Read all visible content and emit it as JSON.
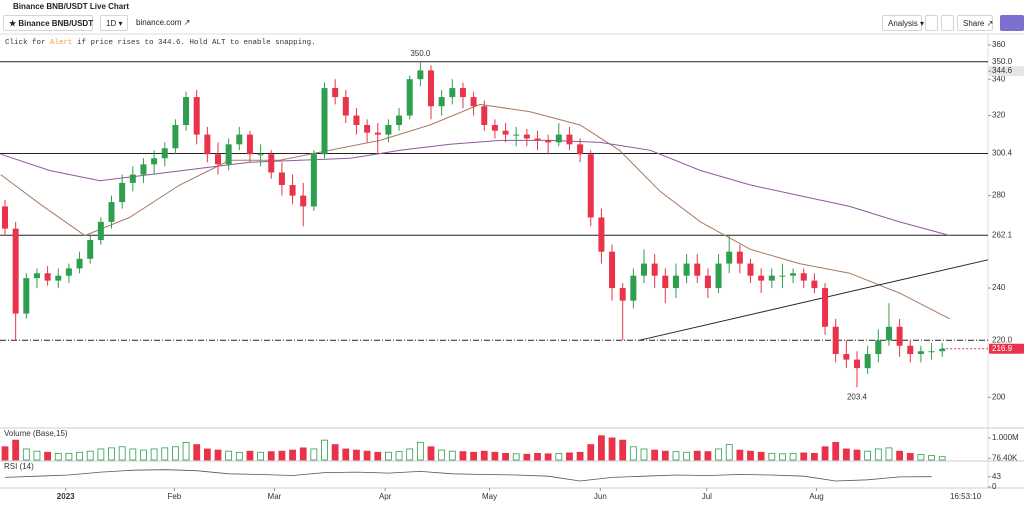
{
  "header": {
    "title": "Binance BNB/USDT Live Chart"
  },
  "toolbar": {
    "symbol": "Binance BNB/USDT",
    "interval": "1D",
    "source": "binance.com",
    "analysis": "Analysis",
    "share": "Share"
  },
  "hint": {
    "before": "Click for ",
    "link": "Alert",
    "after": " if price rises to 344.6. Hold ALT to enable snapping."
  },
  "time": "16:53:10",
  "chart_data": [
    {
      "type": "candlestick",
      "up_color": "#2e9e4f",
      "down_color": "#e8334a",
      "ohlc": [
        [
          275,
          278,
          262,
          265
        ],
        [
          265,
          268,
          220,
          230
        ],
        [
          230,
          246,
          228,
          244
        ],
        [
          244,
          248,
          240,
          246
        ],
        [
          246,
          249,
          241,
          243
        ],
        [
          243,
          248,
          240,
          245
        ],
        [
          245,
          250,
          242,
          248
        ],
        [
          248,
          255,
          246,
          252
        ],
        [
          252,
          262,
          250,
          260
        ],
        [
          260,
          270,
          258,
          268
        ],
        [
          268,
          280,
          265,
          277
        ],
        [
          277,
          290,
          274,
          286
        ],
        [
          286,
          294,
          282,
          290
        ],
        [
          290,
          298,
          286,
          295
        ],
        [
          295,
          302,
          290,
          298
        ],
        [
          298,
          306,
          294,
          303
        ],
        [
          303,
          318,
          300,
          315
        ],
        [
          315,
          333,
          312,
          330
        ],
        [
          330,
          334,
          305,
          310
        ],
        [
          310,
          314,
          296,
          300
        ],
        [
          300,
          306,
          290,
          295
        ],
        [
          295,
          308,
          292,
          305
        ],
        [
          305,
          314,
          302,
          310
        ],
        [
          310,
          312,
          296,
          300
        ],
        [
          300,
          305,
          294,
          300
        ],
        [
          300,
          302,
          288,
          291
        ],
        [
          291,
          296,
          280,
          285
        ],
        [
          285,
          290,
          276,
          280
        ],
        [
          280,
          286,
          266,
          275
        ],
        [
          275,
          302,
          273,
          300
        ],
        [
          300,
          338,
          298,
          335
        ],
        [
          335,
          340,
          326,
          330
        ],
        [
          330,
          334,
          316,
          320
        ],
        [
          320,
          324,
          310,
          315
        ],
        [
          315,
          318,
          306,
          311
        ],
        [
          311,
          316,
          300,
          310
        ],
        [
          310,
          318,
          306,
          315
        ],
        [
          315,
          324,
          312,
          320
        ],
        [
          320,
          342,
          318,
          340
        ],
        [
          340,
          350,
          336,
          345
        ],
        [
          345,
          348,
          318,
          325
        ],
        [
          325,
          334,
          320,
          330
        ],
        [
          330,
          340,
          326,
          335
        ],
        [
          335,
          338,
          324,
          330
        ],
        [
          330,
          333,
          320,
          325
        ],
        [
          325,
          328,
          312,
          315
        ],
        [
          315,
          318,
          308,
          312
        ],
        [
          312,
          316,
          306,
          310
        ],
        [
          310,
          314,
          304,
          310
        ],
        [
          310,
          313,
          304,
          308
        ],
        [
          308,
          312,
          302,
          307
        ],
        [
          307,
          310,
          300,
          306
        ],
        [
          306,
          316,
          304,
          310
        ],
        [
          310,
          314,
          302,
          305
        ],
        [
          305,
          308,
          296,
          300
        ],
        [
          300,
          302,
          266,
          270
        ],
        [
          270,
          274,
          250,
          255
        ],
        [
          255,
          258,
          235,
          240
        ],
        [
          240,
          242,
          220,
          235
        ],
        [
          235,
          248,
          232,
          245
        ],
        [
          245,
          256,
          242,
          250
        ],
        [
          250,
          254,
          240,
          245
        ],
        [
          245,
          248,
          234,
          240
        ],
        [
          240,
          250,
          236,
          245
        ],
        [
          245,
          254,
          242,
          250
        ],
        [
          250,
          254,
          242,
          245
        ],
        [
          245,
          248,
          236,
          240
        ],
        [
          240,
          254,
          238,
          250
        ],
        [
          250,
          262,
          246,
          255
        ],
        [
          255,
          258,
          246,
          250
        ],
        [
          250,
          252,
          242,
          245
        ],
        [
          245,
          248,
          238,
          243
        ],
        [
          243,
          248,
          240,
          245
        ],
        [
          245,
          250,
          240,
          245
        ],
        [
          245,
          248,
          242,
          246
        ],
        [
          246,
          248,
          240,
          243
        ],
        [
          243,
          246,
          238,
          240
        ],
        [
          240,
          242,
          222,
          225
        ],
        [
          225,
          228,
          212,
          215
        ],
        [
          215,
          220,
          210,
          213
        ],
        [
          213,
          216,
          203.4,
          210
        ],
        [
          210,
          218,
          208,
          215
        ],
        [
          215,
          224,
          212,
          220
        ],
        [
          220,
          234,
          218,
          225
        ],
        [
          225,
          228,
          214,
          218
        ],
        [
          218,
          220,
          212,
          215
        ],
        [
          215,
          218,
          212,
          216
        ],
        [
          216,
          219,
          213,
          216
        ],
        [
          216,
          219,
          214,
          216.9
        ]
      ],
      "ylim": [
        191,
        366
      ],
      "log": true,
      "yticks": [
        200,
        240,
        280,
        320,
        340,
        360
      ],
      "xlim": [
        -0.47,
        92.3
      ],
      "xticks": [
        {
          "value": 5.7,
          "label": "2023"
        },
        {
          "value": 15.9,
          "label": "Feb"
        },
        {
          "value": 25.3,
          "label": "Mar"
        },
        {
          "value": 35.7,
          "label": "Apr"
        },
        {
          "value": 45.5,
          "label": "May"
        },
        {
          "value": 55.9,
          "label": "Jun"
        },
        {
          "value": 65.9,
          "label": "Jul"
        },
        {
          "value": 76.2,
          "label": "Aug"
        }
      ],
      "lines": [
        {
          "color": "#a87a62",
          "x": [
            -0.4,
            3.3,
            7.5,
            11.7,
            16.4,
            21.1,
            25.8,
            30.5,
            35.2,
            39.9,
            44.6,
            49.3,
            54,
            57.7,
            61.5,
            65.3,
            70,
            74.6,
            79.3,
            84,
            88.7
          ],
          "values": [
            290,
            276,
            262,
            270,
            285,
            297,
            297,
            302,
            307,
            315,
            326,
            322,
            315,
            302,
            282,
            268,
            256,
            250,
            246,
            238,
            228
          ]
        },
        {
          "color": "#8e5a9c",
          "x": [
            -0.4,
            4.2,
            8.9,
            13.6,
            18.3,
            23,
            27.7,
            32.4,
            37.1,
            41.8,
            46.5,
            51.2,
            55.9,
            60.6,
            65.3,
            70,
            74.6,
            79.3,
            84,
            88.7
          ],
          "values": [
            300,
            292,
            287,
            290,
            293,
            296,
            297,
            298,
            302,
            305,
            307,
            307,
            306,
            302,
            292,
            285,
            280,
            275,
            268,
            262
          ]
        },
        {
          "color": "#222222",
          "x": [
            59.6,
            92.3
          ],
          "values": [
            220,
            251.6
          ]
        }
      ],
      "levels": [
        {
          "value": 350,
          "label": "350.0"
        },
        300.4,
        262.1
      ],
      "dashed_level": {
        "value": 220,
        "label": "220.0"
      },
      "alert": 344.6,
      "last": 216.9,
      "last_color": "#e8334a",
      "high_label": {
        "value": 350,
        "label": "350.0"
      },
      "low_label": 203.4
    },
    {
      "type": "bar",
      "title": "Volume (Base,15)",
      "values": [
        600000,
        900000,
        500000,
        400000,
        350000,
        300000,
        300000,
        350000,
        400000,
        500000,
        550000,
        600000,
        500000,
        450000,
        500000,
        550000,
        600000,
        800000,
        700000,
        500000,
        450000,
        400000,
        350000,
        400000,
        350000,
        380000,
        400000,
        450000,
        550000,
        500000,
        900000,
        700000,
        500000,
        450000,
        400000,
        350000,
        350000,
        380000,
        500000,
        800000,
        600000,
        450000,
        400000,
        380000,
        350000,
        400000,
        350000,
        300000,
        280000,
        260000,
        300000,
        280000,
        300000,
        320000,
        350000,
        700000,
        1100000,
        1000000,
        900000,
        600000,
        500000,
        450000,
        400000,
        380000,
        350000,
        400000,
        380000,
        500000,
        700000,
        450000,
        400000,
        350000,
        300000,
        280000,
        300000,
        320000,
        300000,
        600000,
        800000,
        500000,
        450000,
        400000,
        500000,
        550000,
        400000,
        300000,
        250000,
        200000,
        150000
      ],
      "ylim": [
        0,
        1360000
      ],
      "yticks": [
        {
          "value": 76400,
          "label": "76.40K"
        },
        {
          "value": 1000000,
          "label": "1.000M"
        }
      ]
    },
    {
      "type": "line",
      "title": "RSI (14)",
      "color": "#555555",
      "x": [
        0,
        3,
        6,
        9,
        12,
        15,
        18,
        21,
        24,
        27,
        30,
        33,
        36,
        39,
        42,
        45,
        48,
        51,
        54,
        57,
        60,
        63,
        66,
        69,
        72,
        75,
        78,
        81,
        84,
        87
      ],
      "values": [
        40,
        45,
        50,
        62,
        70,
        72,
        68,
        55,
        52,
        48,
        60,
        62,
        58,
        65,
        55,
        52,
        50,
        45,
        25,
        40,
        45,
        50,
        48,
        52,
        50,
        45,
        25,
        30,
        42,
        43
      ],
      "ylim": [
        0,
        100
      ],
      "yticks": [
        0,
        43
      ]
    }
  ]
}
